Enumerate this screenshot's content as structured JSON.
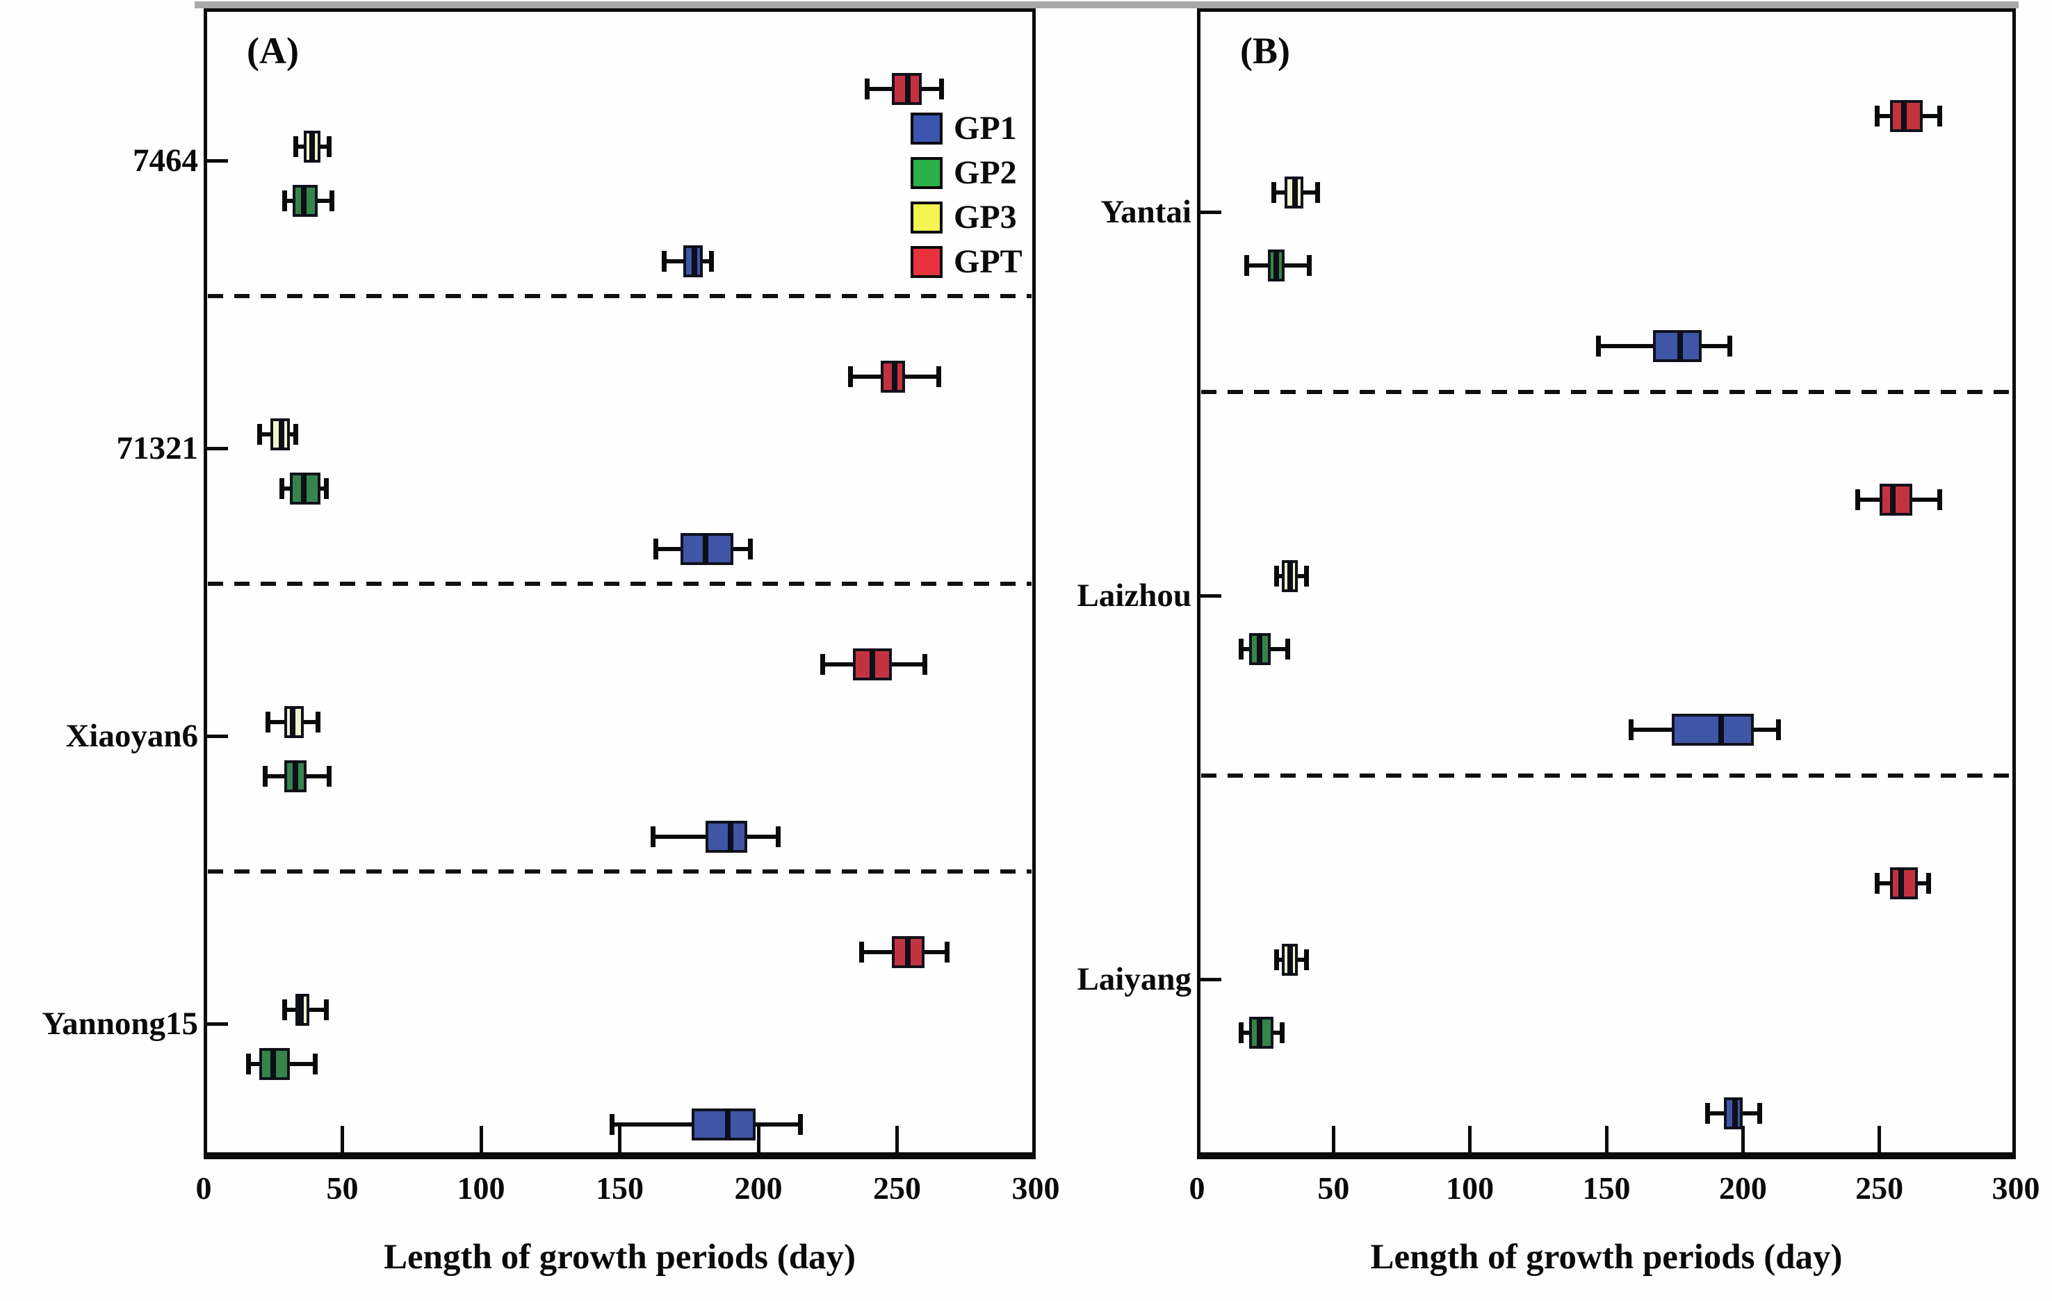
{
  "chart_data": {
    "type": "boxplot",
    "orientation": "horizontal",
    "xlabel": "Length of growth periods (day)",
    "xlim": [
      0,
      300
    ],
    "xticks": [
      0,
      50,
      100,
      150,
      200,
      250,
      300
    ],
    "grid": "off",
    "series_order_top_to_bottom": [
      "GPT",
      "GP3",
      "GP2",
      "GP1"
    ],
    "legend": {
      "position": "inside top-right of panel A",
      "items": [
        {
          "label": "GP1",
          "color": "#3b54ae"
        },
        {
          "label": "GP2",
          "color": "#2cb04a"
        },
        {
          "label": "GP3",
          "color": "#f3f352"
        },
        {
          "label": "GPT",
          "color": "#e8333f"
        }
      ]
    },
    "box_fill_colors": {
      "GP1": "#3f55a6",
      "GP2": "#35854a",
      "GP3": "#f2f2cf",
      "GPT": "#c3333f"
    },
    "line_color": "#0a0a0a",
    "panels": [
      {
        "label": "(A)",
        "categories": [
          "7464",
          "71321",
          "Xiaoyan6",
          "Yannong15"
        ],
        "groups": [
          {
            "category": "7464",
            "boxes": [
              {
                "series": "GPT",
                "whisker_low": 239,
                "q1": 248,
                "median": 254,
                "q3": 259,
                "whisker_high": 266
              },
              {
                "series": "GP3",
                "whisker_low": 33,
                "q1": 36,
                "median": 39,
                "q3": 42,
                "whisker_high": 45
              },
              {
                "series": "GP2",
                "whisker_low": 29,
                "q1": 32,
                "median": 36,
                "q3": 41,
                "whisker_high": 46
              },
              {
                "series": "GP1",
                "whisker_low": 166,
                "q1": 173,
                "median": 177,
                "q3": 180,
                "whisker_high": 183
              }
            ]
          },
          {
            "category": "71321",
            "boxes": [
              {
                "series": "GPT",
                "whisker_low": 233,
                "q1": 244,
                "median": 249,
                "q3": 253,
                "whisker_high": 265
              },
              {
                "series": "GP3",
                "whisker_low": 20,
                "q1": 24,
                "median": 28,
                "q3": 31,
                "whisker_high": 33
              },
              {
                "series": "GP2",
                "whisker_low": 28,
                "q1": 31,
                "median": 36,
                "q3": 42,
                "whisker_high": 44
              },
              {
                "series": "GP1",
                "whisker_low": 163,
                "q1": 172,
                "median": 181,
                "q3": 191,
                "whisker_high": 197
              }
            ]
          },
          {
            "category": "Xiaoyan6",
            "boxes": [
              {
                "series": "GPT",
                "whisker_low": 223,
                "q1": 234,
                "median": 241,
                "q3": 248,
                "whisker_high": 260
              },
              {
                "series": "GP3",
                "whisker_low": 23,
                "q1": 29,
                "median": 32,
                "q3": 36,
                "whisker_high": 41
              },
              {
                "series": "GP2",
                "whisker_low": 22,
                "q1": 29,
                "median": 33,
                "q3": 37,
                "whisker_high": 45
              },
              {
                "series": "GP1",
                "whisker_low": 162,
                "q1": 181,
                "median": 190,
                "q3": 196,
                "whisker_high": 207
              }
            ]
          },
          {
            "category": "Yannong15",
            "boxes": [
              {
                "series": "GPT",
                "whisker_low": 237,
                "q1": 248,
                "median": 254,
                "q3": 260,
                "whisker_high": 268
              },
              {
                "series": "GP3",
                "whisker_low": 29,
                "q1": 33,
                "median": 35,
                "q3": 38,
                "whisker_high": 44
              },
              {
                "series": "GP2",
                "whisker_low": 16,
                "q1": 20,
                "median": 25,
                "q3": 31,
                "whisker_high": 40
              },
              {
                "series": "GP1",
                "whisker_low": 147,
                "q1": 176,
                "median": 189,
                "q3": 199,
                "whisker_high": 215
              }
            ]
          }
        ]
      },
      {
        "label": "(B)",
        "categories": [
          "Yantai",
          "Laizhou",
          "Laiyang"
        ],
        "groups": [
          {
            "category": "Yantai",
            "boxes": [
              {
                "series": "GPT",
                "whisker_low": 249,
                "q1": 254,
                "median": 259,
                "q3": 266,
                "whisker_high": 272
              },
              {
                "series": "GP3",
                "whisker_low": 28,
                "q1": 32,
                "median": 36,
                "q3": 39,
                "whisker_high": 44
              },
              {
                "series": "GP2",
                "whisker_low": 18,
                "q1": 26,
                "median": 29,
                "q3": 32,
                "whisker_high": 41
              },
              {
                "series": "GP1",
                "whisker_low": 147,
                "q1": 167,
                "median": 177,
                "q3": 185,
                "whisker_high": 195
              }
            ]
          },
          {
            "category": "Laizhou",
            "boxes": [
              {
                "series": "GPT",
                "whisker_low": 242,
                "q1": 250,
                "median": 255,
                "q3": 262,
                "whisker_high": 272
              },
              {
                "series": "GP3",
                "whisker_low": 29,
                "q1": 31,
                "median": 34,
                "q3": 37,
                "whisker_high": 40
              },
              {
                "series": "GP2",
                "whisker_low": 16,
                "q1": 19,
                "median": 23,
                "q3": 27,
                "whisker_high": 33
              },
              {
                "series": "GP1",
                "whisker_low": 159,
                "q1": 174,
                "median": 192,
                "q3": 204,
                "whisker_high": 213
              }
            ]
          },
          {
            "category": "Laiyang",
            "boxes": [
              {
                "series": "GPT",
                "whisker_low": 249,
                "q1": 254,
                "median": 258,
                "q3": 264,
                "whisker_high": 268
              },
              {
                "series": "GP3",
                "whisker_low": 29,
                "q1": 31,
                "median": 34,
                "q3": 37,
                "whisker_high": 40
              },
              {
                "series": "GP2",
                "whisker_low": 16,
                "q1": 19,
                "median": 23,
                "q3": 28,
                "whisker_high": 31
              },
              {
                "series": "GP1",
                "whisker_low": 187,
                "q1": 193,
                "median": 197,
                "q3": 200,
                "whisker_high": 206
              }
            ]
          }
        ]
      }
    ]
  }
}
